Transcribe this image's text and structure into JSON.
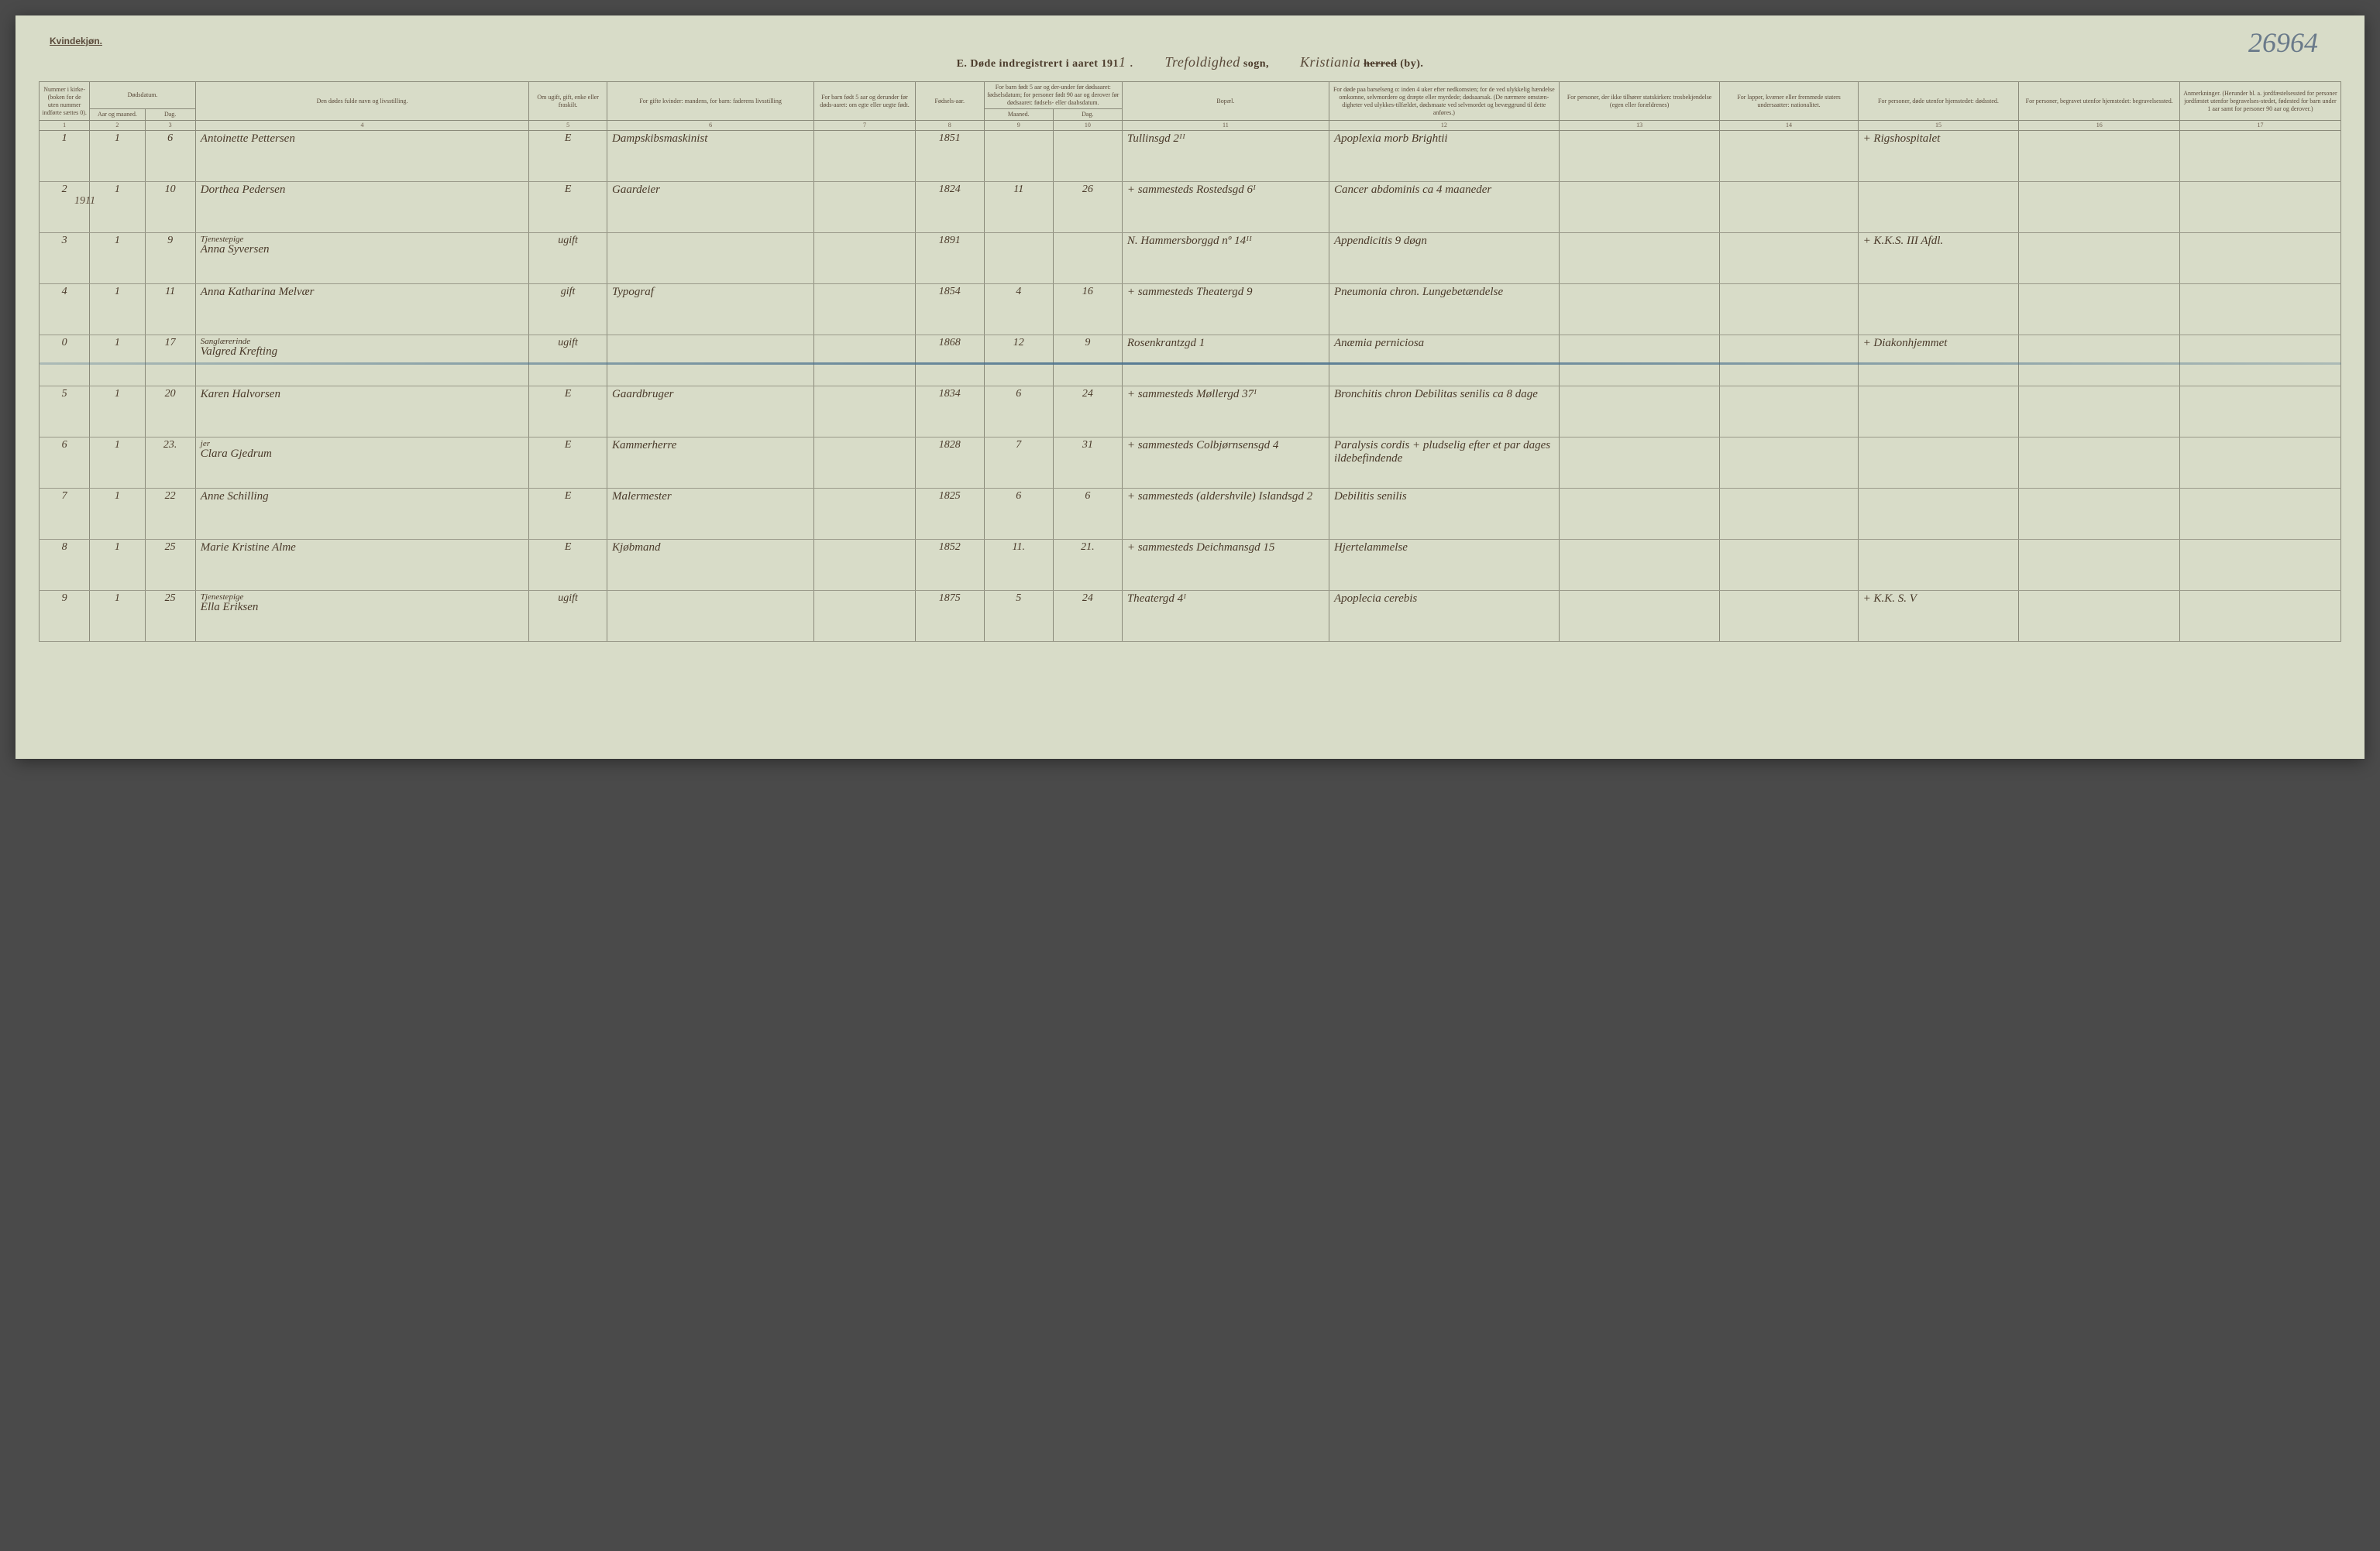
{
  "header": {
    "kvindekjon": "Kvindekjøn.",
    "page_number": "26964",
    "title_prefix": "E.  Døde indregistrert i aaret 191",
    "title_year_suffix": "1 .",
    "sogn_script": "Trefoldighed",
    "sogn_label": "sogn,",
    "by_script": "Kristiania",
    "herred_struck": "herred",
    "by_label": "(by)."
  },
  "columns": {
    "c1": "Nummer i kirke-(boken for de uten nummer indførte sættes 0).",
    "c2a": "Dødsdatum.",
    "c2b": "Aar og maaned.",
    "c3": "Dag.",
    "c4": "Den dødes fulde navn og livsstilling.",
    "c5": "Om ugift, gift, enke eller fraskilt.",
    "c6": "For gifte kvinder: mandens, for barn: faderens livsstilling",
    "c7": "For barn født 5 aar og derunder før døds-aaret: om egte eller uegte født.",
    "c8": "Fødsels-aar.",
    "c9_10": "For barn født 5 aar og der-under før dødsaaret: fødselsdatum; for personer født 90 aar og derover før dødsaaret: fødsels- eller daabsdatum.",
    "c9": "Maaned.",
    "c10": "Dag.",
    "c11": "Bopæl.",
    "c12": "For døde paa barselseng o: inden 4 uker efter nedkomsten; for de ved ulykkelig hændelse omkomne, selvmordere og dræpte eller myrdede; dødsaarsak. (De nærmere omstæn-digheter ved ulykkes-tilfældet, dødsmaate ved selvmordet og bevæggrund til dette anføres.)",
    "c13": "For personer, der ikke tilhører statskirken: trosbekjendelse (egen eller forældrenes)",
    "c14": "For lapper, kvæner eller fremmede staters undersaatter: nationalitet.",
    "c15": "For personer, døde utenfor hjemstedet: dødssted.",
    "c16": "For personer, begravet utenfor hjemstedet: begravelsessted.",
    "c17": "Anmerkninger. (Herunder bl. a. jordfæstelsessted for personer jordfæstet utenfor begravelses-stedet, fødested for barn under 1 aar samt for personer 90 aar og derover.)"
  },
  "colnums": [
    "1",
    "2",
    "3",
    "4",
    "5",
    "6",
    "7",
    "8",
    "9",
    "10",
    "11",
    "12",
    "13",
    "14",
    "15",
    "16",
    "17"
  ],
  "year_note": "1911",
  "rows": [
    {
      "n": "1",
      "mo": "1",
      "day": "6",
      "name": "Antoinette Pettersen",
      "status": "E",
      "occ": "Dampskibsmaskinist",
      "c7": "",
      "born": "1851",
      "bm": "",
      "bd": "",
      "bopael": "Tullinsgd 2ᴵᴵ",
      "cause": "Apoplexia morb Brightii",
      "c13": "",
      "c14": "",
      "c15": "+ Rigshospitalet",
      "c16": "",
      "c17": "",
      "name_sup": "",
      "struck": false
    },
    {
      "n": "2",
      "mo": "1",
      "day": "10",
      "name": "Dorthea Pedersen",
      "status": "E",
      "occ": "Gaardeier",
      "c7": "",
      "born": "1824",
      "bm": "11",
      "bd": "26",
      "bopael": "+ sammesteds Rostedsgd 6ᴵ",
      "cause": "Cancer abdominis ca 4 maaneder",
      "c13": "",
      "c14": "",
      "c15": "",
      "c16": "",
      "c17": "",
      "name_sup": "",
      "struck": false
    },
    {
      "n": "3",
      "mo": "1",
      "day": "9",
      "name": "Anna Syversen",
      "status": "ugift",
      "occ": "",
      "c7": "",
      "born": "1891",
      "bm": "",
      "bd": "",
      "bopael": "N. Hammersborggd nº 14ᴵᴵ",
      "cause": "Appendicitis 9 døgn",
      "c13": "",
      "c14": "",
      "c15": "+ K.K.S. III Afdl.",
      "c16": "",
      "c17": "",
      "name_sup": "Tjenestepige",
      "struck": false
    },
    {
      "n": "4",
      "mo": "1",
      "day": "11",
      "name": "Anna Katharina Melvær",
      "status": "gift",
      "occ": "Typograf",
      "c7": "",
      "born": "1854",
      "bm": "4",
      "bd": "16",
      "bopael": "+ sammesteds Theatergd 9",
      "cause": "Pneumonia chron. Lungebetændelse",
      "c13": "",
      "c14": "",
      "c15": "",
      "c16": "",
      "c17": "",
      "name_sup": "",
      "struck": false
    },
    {
      "n": "0",
      "mo": "1",
      "day": "17",
      "name": "Valgred Krefting",
      "status": "ugift",
      "occ": "",
      "c7": "",
      "born": "1868",
      "bm": "12",
      "bd": "9",
      "bopael": "Rosenkrantzgd 1",
      "cause": "Anæmia perniciosa",
      "c13": "",
      "c14": "",
      "c15": "+ Diakonhjemmet",
      "c16": "",
      "c17": "",
      "name_sup": "Sanglærerinde",
      "struck": true
    },
    {
      "n": "5",
      "mo": "1",
      "day": "20",
      "name": "Karen Halvorsen",
      "status": "E",
      "occ": "Gaardbruger",
      "c7": "",
      "born": "1834",
      "bm": "6",
      "bd": "24",
      "bopael": "+ sammesteds Møllergd 37ᴵ",
      "cause": "Bronchitis chron Debilitas senilis ca 8 dage",
      "c13": "",
      "c14": "",
      "c15": "",
      "c16": "",
      "c17": "",
      "name_sup": "",
      "struck": false
    },
    {
      "n": "6",
      "mo": "1",
      "day": "23.",
      "name": "Clara Gjedrum",
      "status": "E",
      "occ": "Kammerherre",
      "c7": "",
      "born": "1828",
      "bm": "7",
      "bd": "31",
      "bopael": "+ sammesteds Colbjørnsensgd 4",
      "cause": "Paralysis cordis + pludselig efter et par dages ildebefindende",
      "c13": "",
      "c14": "",
      "c15": "",
      "c16": "",
      "c17": "",
      "name_sup": "jer",
      "struck": false
    },
    {
      "n": "7",
      "mo": "1",
      "day": "22",
      "name": "Anne Schilling",
      "status": "E",
      "occ": "Malermester",
      "c7": "",
      "born": "1825",
      "bm": "6",
      "bd": "6",
      "bopael": "+ sammesteds (aldershvile) Islandsgd 2",
      "cause": "Debilitis senilis",
      "c13": "",
      "c14": "",
      "c15": "",
      "c16": "",
      "c17": "",
      "name_sup": "",
      "struck": false
    },
    {
      "n": "8",
      "mo": "1",
      "day": "25",
      "name": "Marie Kristine Alme",
      "status": "E",
      "occ": "Kjøbmand",
      "c7": "",
      "born": "1852",
      "bm": "11.",
      "bd": "21.",
      "bopael": "+ sammesteds Deichmansgd 15",
      "cause": "Hjertelammelse",
      "c13": "",
      "c14": "",
      "c15": "",
      "c16": "",
      "c17": "",
      "name_sup": "",
      "struck": false
    },
    {
      "n": "9",
      "mo": "1",
      "day": "25",
      "name": "Ella Eriksen",
      "status": "ugift",
      "occ": "",
      "c7": "",
      "born": "1875",
      "bm": "5",
      "bd": "24",
      "bopael": "Theatergd 4ᴵ",
      "cause": "Apoplecia cerebis",
      "c13": "",
      "c14": "",
      "c15": "+ K.K. S. V",
      "c16": "",
      "c17": "",
      "name_sup": "Tjenestepige",
      "struck": false
    }
  ]
}
